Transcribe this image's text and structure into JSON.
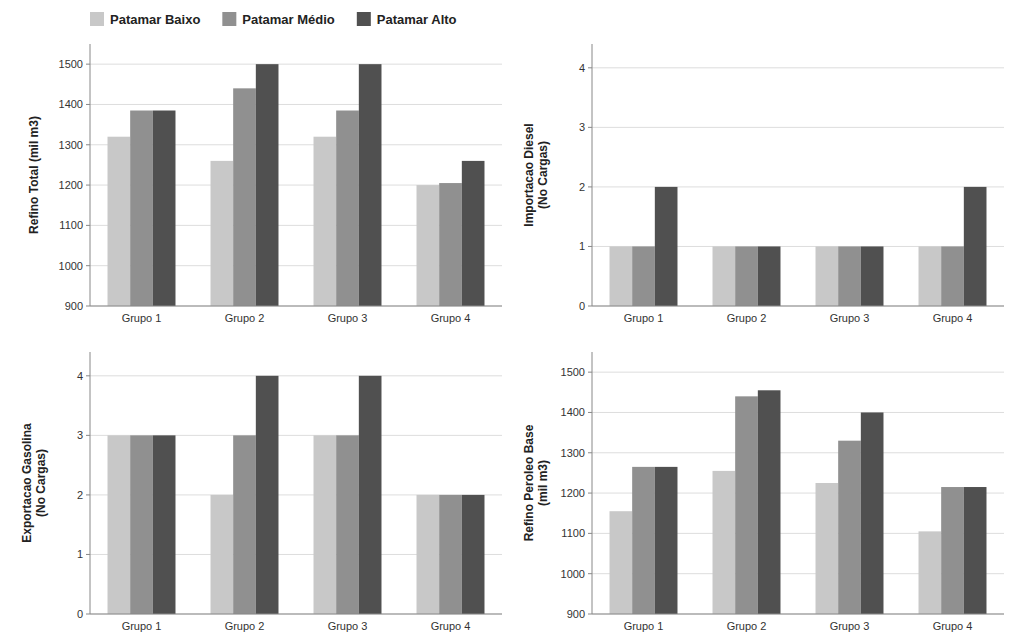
{
  "chart_data": [
    {
      "type": "bar",
      "ylabel": "Refino Total (mil m3)",
      "categories": [
        "Grupo 1",
        "Grupo 2",
        "Grupo 3",
        "Grupo 4"
      ],
      "series": [
        {
          "name": "Patamar Baixo",
          "color": "#c8c8c8",
          "values": [
            1320,
            1260,
            1320,
            1200
          ]
        },
        {
          "name": "Patamar Médio",
          "color": "#909090",
          "values": [
            1385,
            1440,
            1385,
            1205
          ]
        },
        {
          "name": "Patamar Alto",
          "color": "#505050",
          "values": [
            1385,
            1500,
            1500,
            1260
          ]
        }
      ],
      "ylim": [
        900,
        1550
      ],
      "yticks": [
        900,
        1000,
        1100,
        1200,
        1300,
        1400,
        1500
      ],
      "grid": true,
      "legend": "upper left"
    },
    {
      "type": "bar",
      "ylabel": "Importacao Diesel\n(No Cargas)",
      "categories": [
        "Grupo 1",
        "Grupo 2",
        "Grupo 3",
        "Grupo 4"
      ],
      "series": [
        {
          "name": "Patamar Baixo",
          "color": "#c8c8c8",
          "values": [
            1,
            1,
            1,
            1
          ]
        },
        {
          "name": "Patamar Médio",
          "color": "#909090",
          "values": [
            1,
            1,
            1,
            1
          ]
        },
        {
          "name": "Patamar Alto",
          "color": "#505050",
          "values": [
            2,
            1,
            1,
            2
          ]
        }
      ],
      "ylim": [
        0,
        4.4
      ],
      "yticks": [
        0,
        1,
        2,
        3,
        4
      ],
      "grid": true
    },
    {
      "type": "bar",
      "ylabel": "Exportacao Gasolina\n(No Cargas)",
      "categories": [
        "Grupo 1",
        "Grupo 2",
        "Grupo 3",
        "Grupo 4"
      ],
      "series": [
        {
          "name": "Patamar Baixo",
          "color": "#c8c8c8",
          "values": [
            3,
            2,
            3,
            2
          ]
        },
        {
          "name": "Patamar Médio",
          "color": "#909090",
          "values": [
            3,
            3,
            3,
            2
          ]
        },
        {
          "name": "Patamar Alto",
          "color": "#505050",
          "values": [
            3,
            4,
            4,
            2
          ]
        }
      ],
      "ylim": [
        0,
        4.4
      ],
      "yticks": [
        0,
        1,
        2,
        3,
        4
      ],
      "grid": true
    },
    {
      "type": "bar",
      "ylabel": "Refino Peroleo Base\n(mil m3)",
      "categories": [
        "Grupo 1",
        "Grupo 2",
        "Grupo 3",
        "Grupo 4"
      ],
      "series": [
        {
          "name": "Patamar Baixo",
          "color": "#c8c8c8",
          "values": [
            1155,
            1255,
            1225,
            1105
          ]
        },
        {
          "name": "Patamar Médio",
          "color": "#909090",
          "values": [
            1265,
            1440,
            1330,
            1215
          ]
        },
        {
          "name": "Patamar Alto",
          "color": "#505050",
          "values": [
            1265,
            1455,
            1400,
            1215
          ]
        }
      ],
      "ylim": [
        900,
        1550
      ],
      "yticks": [
        900,
        1000,
        1100,
        1200,
        1300,
        1400,
        1500
      ],
      "grid": true
    }
  ]
}
